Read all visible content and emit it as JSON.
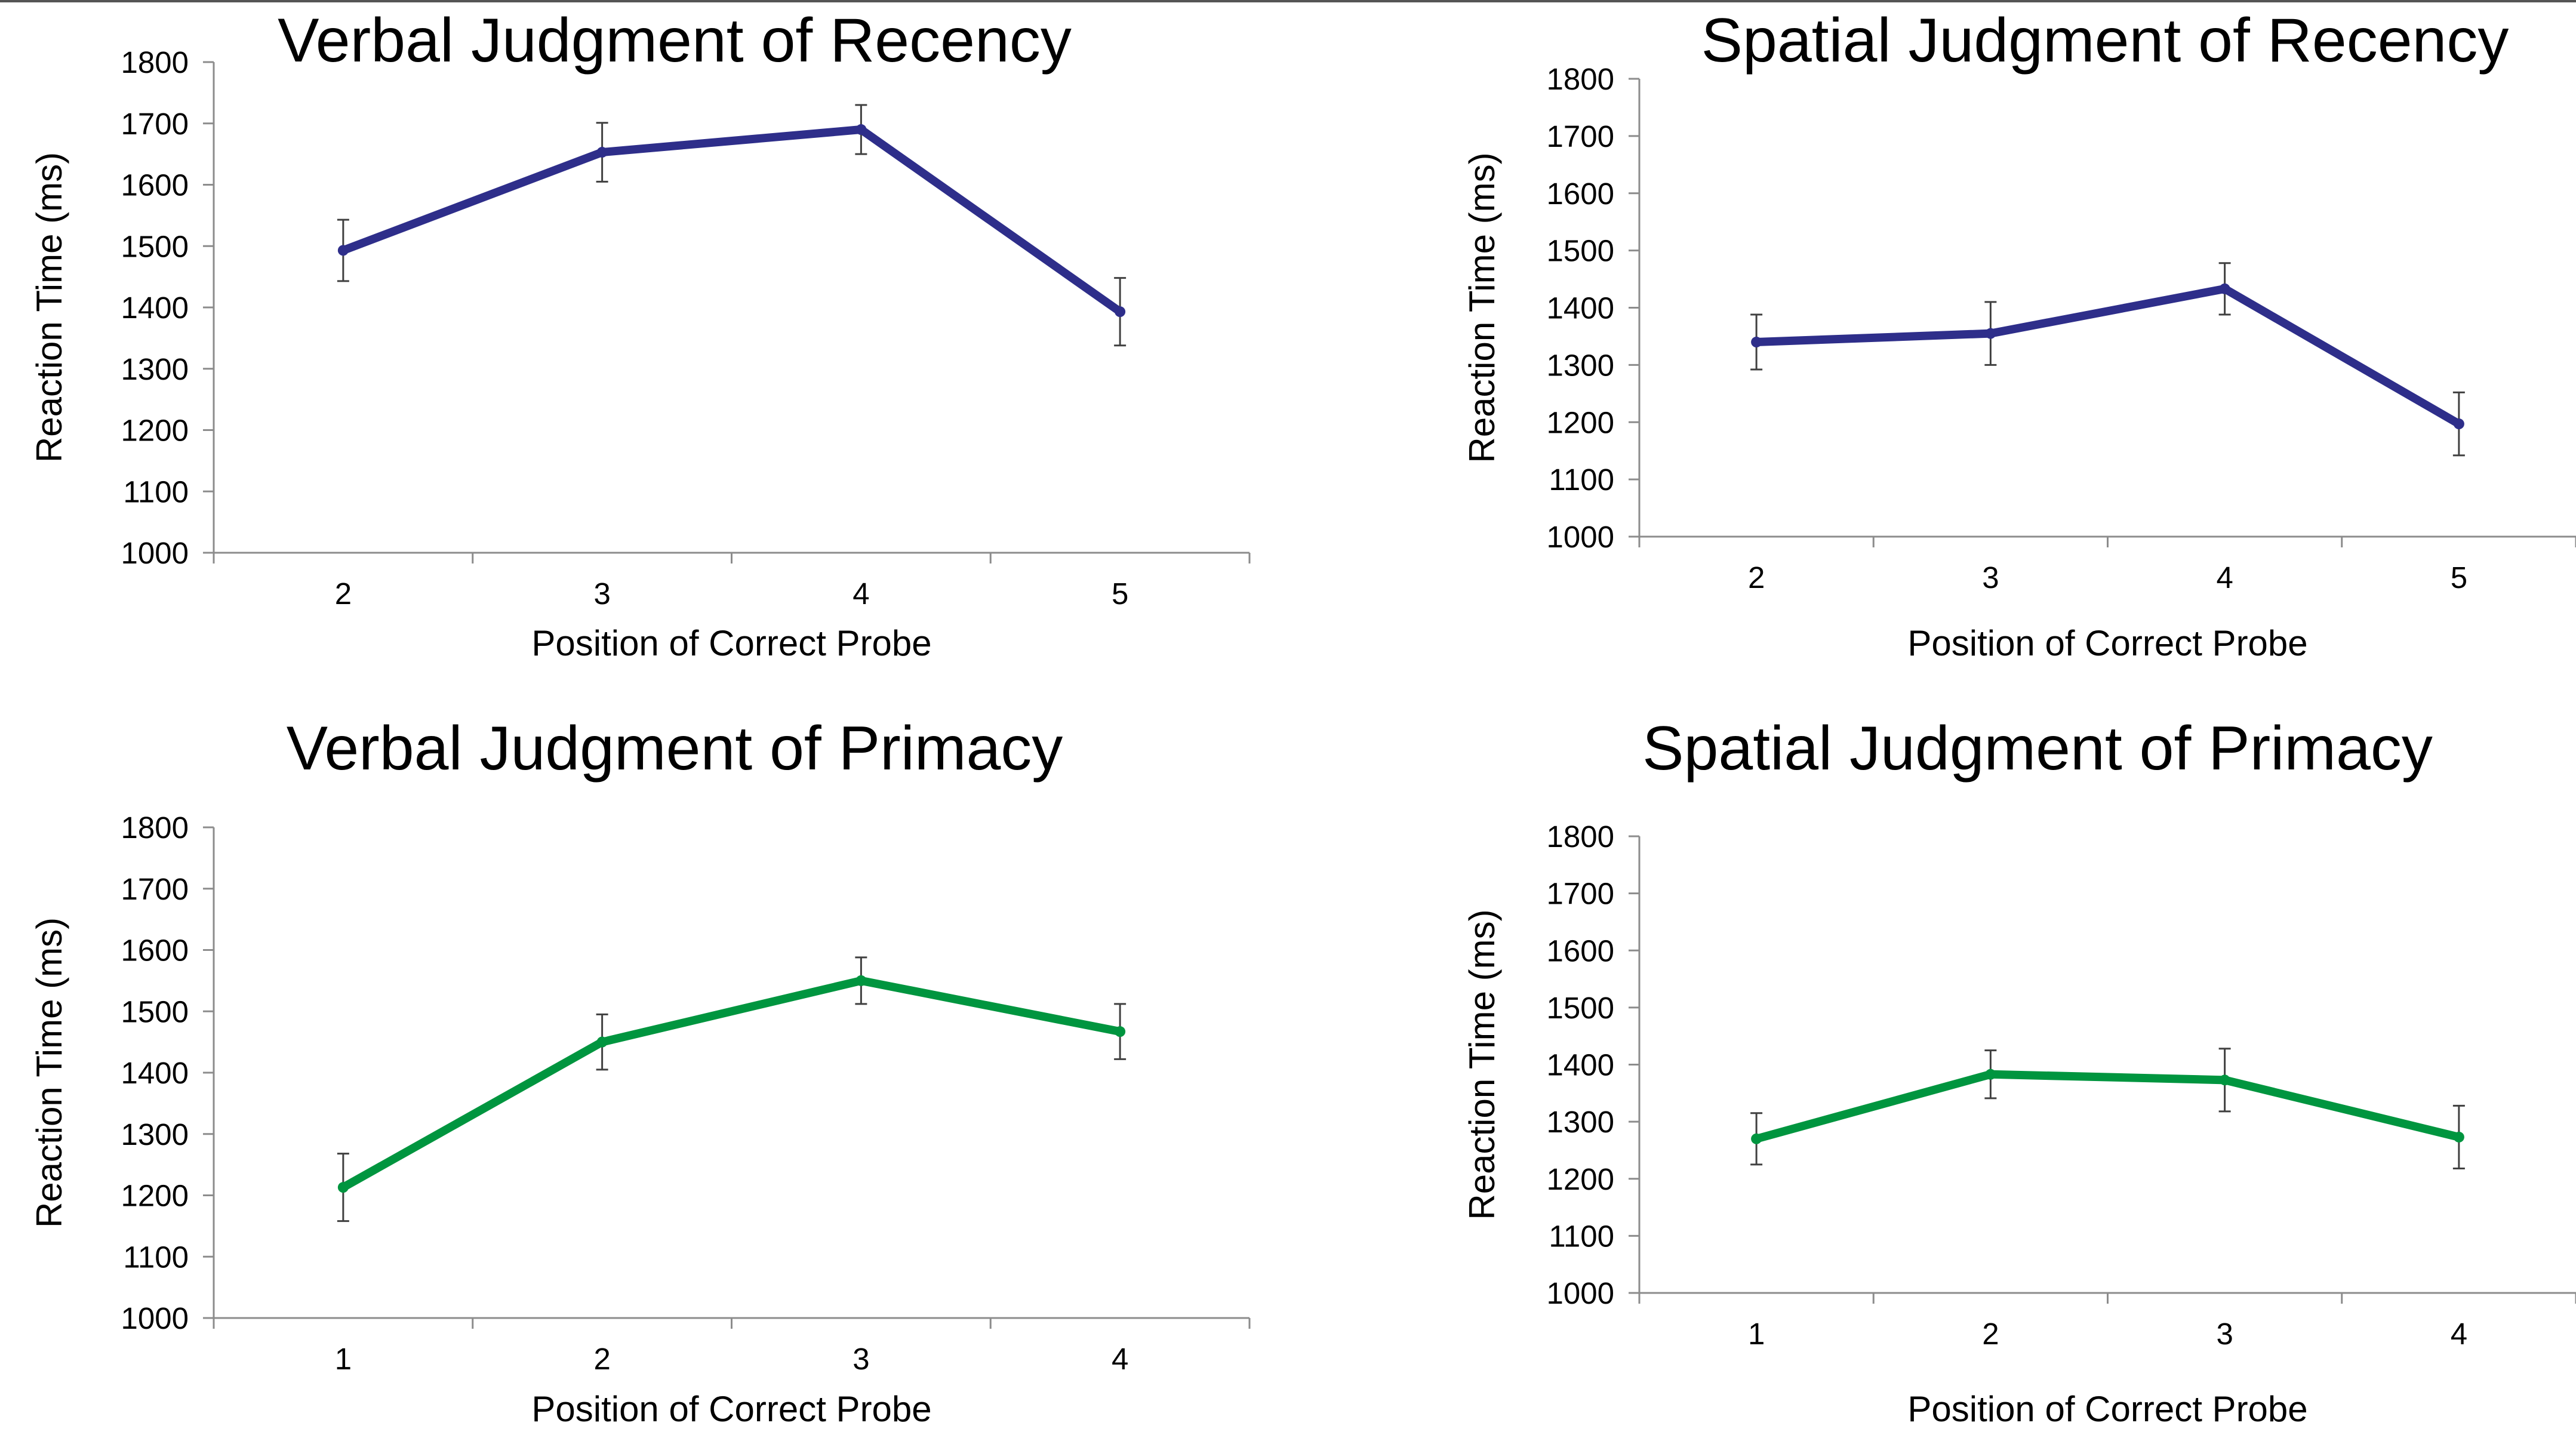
{
  "figure": {
    "colors": {
      "recency": "#2e2e8a",
      "primacy": "#00953f",
      "axis": "#8c8c8c",
      "error_bar": "#404040"
    }
  },
  "chart_data": [
    {
      "type": "line",
      "title": "Verbal Judgment of Recency",
      "xlabel": "Position of Correct Probe",
      "ylabel": "Reaction Time (ms)",
      "categories": [
        "2",
        "3",
        "4",
        "5"
      ],
      "values": [
        1493,
        1653,
        1690,
        1393
      ],
      "error": [
        50,
        48,
        40,
        55
      ],
      "ylim": [
        1000,
        1800
      ],
      "yticks": [
        "1000",
        "1100",
        "1200",
        "1300",
        "1400",
        "1500",
        "1600",
        "1700",
        "1800"
      ],
      "color": "#2e2e8a",
      "grid": false,
      "legend": "none"
    },
    {
      "type": "line",
      "title": "Spatial Judgment of Recency",
      "xlabel": "Position of Correct Probe",
      "ylabel": "Reaction Time (ms)",
      "categories": [
        "2",
        "3",
        "4",
        "5"
      ],
      "values": [
        1340,
        1355,
        1433,
        1197
      ],
      "error": [
        48,
        55,
        45,
        55
      ],
      "ylim": [
        1000,
        1800
      ],
      "yticks": [
        "1000",
        "1100",
        "1200",
        "1300",
        "1400",
        "1500",
        "1600",
        "1700",
        "1800"
      ],
      "color": "#2e2e8a",
      "grid": false,
      "legend": "none"
    },
    {
      "type": "line",
      "title": "Verbal Judgment of Primacy",
      "xlabel": "Position of Correct Probe",
      "ylabel": "Reaction Time (ms)",
      "categories": [
        "1",
        "2",
        "3",
        "4"
      ],
      "values": [
        1213,
        1450,
        1550,
        1467
      ],
      "error": [
        55,
        45,
        38,
        45
      ],
      "ylim": [
        1000,
        1800
      ],
      "yticks": [
        "1000",
        "1100",
        "1200",
        "1300",
        "1400",
        "1500",
        "1600",
        "1700",
        "1800"
      ],
      "color": "#00953f",
      "grid": false,
      "legend": "none"
    },
    {
      "type": "line",
      "title": "Spatial Judgment of Primacy",
      "xlabel": "Position of Correct Probe",
      "ylabel": "Reaction Time (ms)",
      "categories": [
        "1",
        "2",
        "3",
        "4"
      ],
      "values": [
        1270,
        1383,
        1373,
        1273
      ],
      "error": [
        45,
        42,
        55,
        55
      ],
      "ylim": [
        1000,
        1800
      ],
      "yticks": [
        "1000",
        "1100",
        "1200",
        "1300",
        "1400",
        "1500",
        "1600",
        "1700",
        "1800"
      ],
      "color": "#00953f",
      "grid": false,
      "legend": "none"
    }
  ]
}
